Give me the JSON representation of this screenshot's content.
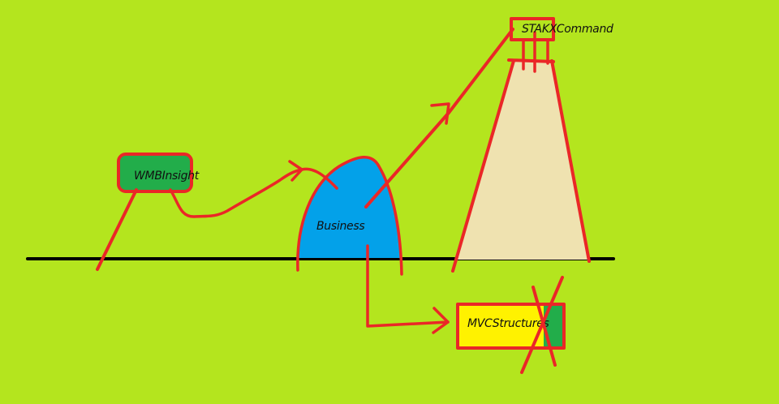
{
  "diagram": {
    "colors": {
      "background": "#b4e51e",
      "red": "#ea2727",
      "green": "#22ad4a",
      "blue": "#03a1e9",
      "tan": "#efe2b0",
      "yellow": "#fff200",
      "ground": "#000000"
    },
    "labels": {
      "wmb": "WMBInsight",
      "business": "Business",
      "stakx": "STAKXCommand",
      "mvc": "MVCStructures"
    }
  }
}
